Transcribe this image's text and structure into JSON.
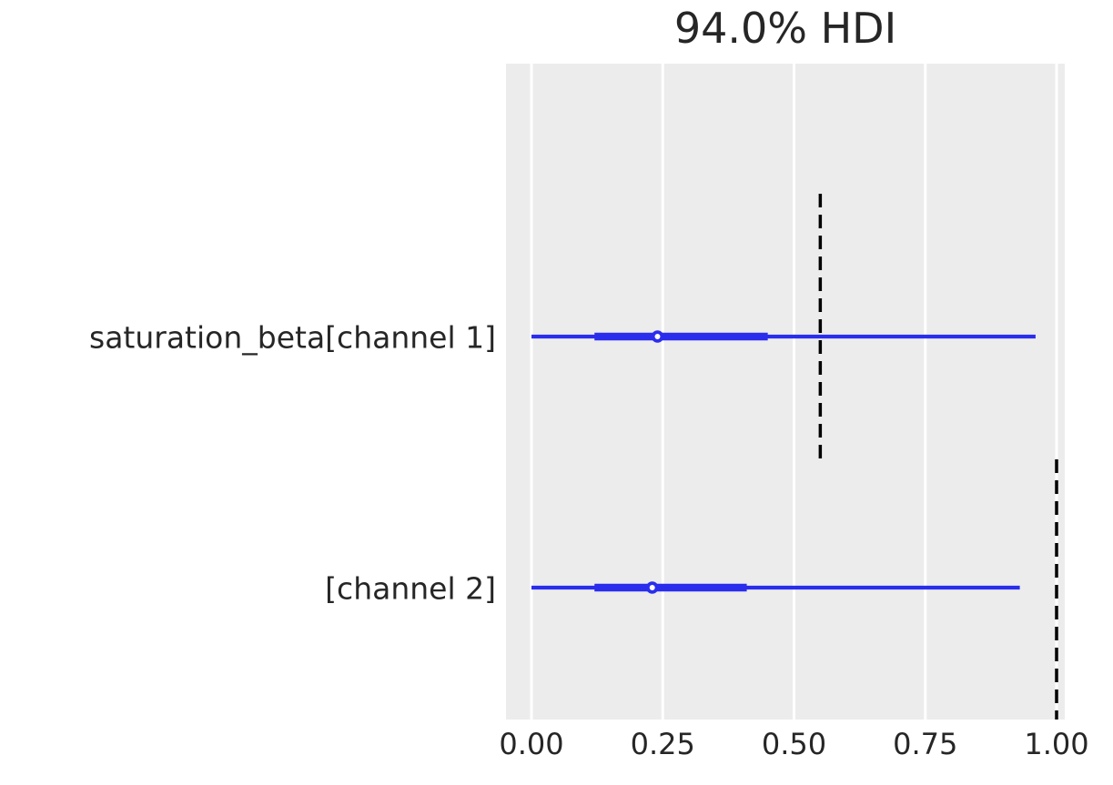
{
  "title": "94.0% HDI",
  "colors": {
    "line": "#2a2eec",
    "reference_line": "#000000",
    "plot_background": "#ececec",
    "grid_line": "#ffffff",
    "text": "#262626",
    "marker_fill": "#ffffff"
  },
  "chart_data": {
    "type": "forest",
    "title": "94.0% HDI",
    "hdi_prob": 0.94,
    "xlabel": "",
    "ylabel": "",
    "xlim": [
      0.0,
      1.0
    ],
    "grid": true,
    "x_ticks": [
      {
        "value": 0.0,
        "label": "0.00"
      },
      {
        "value": 0.25,
        "label": "0.25"
      },
      {
        "value": 0.5,
        "label": "0.50"
      },
      {
        "value": 0.75,
        "label": "0.75"
      },
      {
        "value": 1.0,
        "label": "1.00"
      }
    ],
    "rows": [
      {
        "label": "saturation_beta[channel 1]",
        "hdi": [
          0.0,
          0.96
        ],
        "quartile": [
          0.12,
          0.45
        ],
        "point": 0.24,
        "ref_value": 0.55
      },
      {
        "label": "[channel 2]",
        "hdi": [
          0.0,
          0.93
        ],
        "quartile": [
          0.12,
          0.41
        ],
        "point": 0.23,
        "ref_value": 1.0
      }
    ]
  }
}
